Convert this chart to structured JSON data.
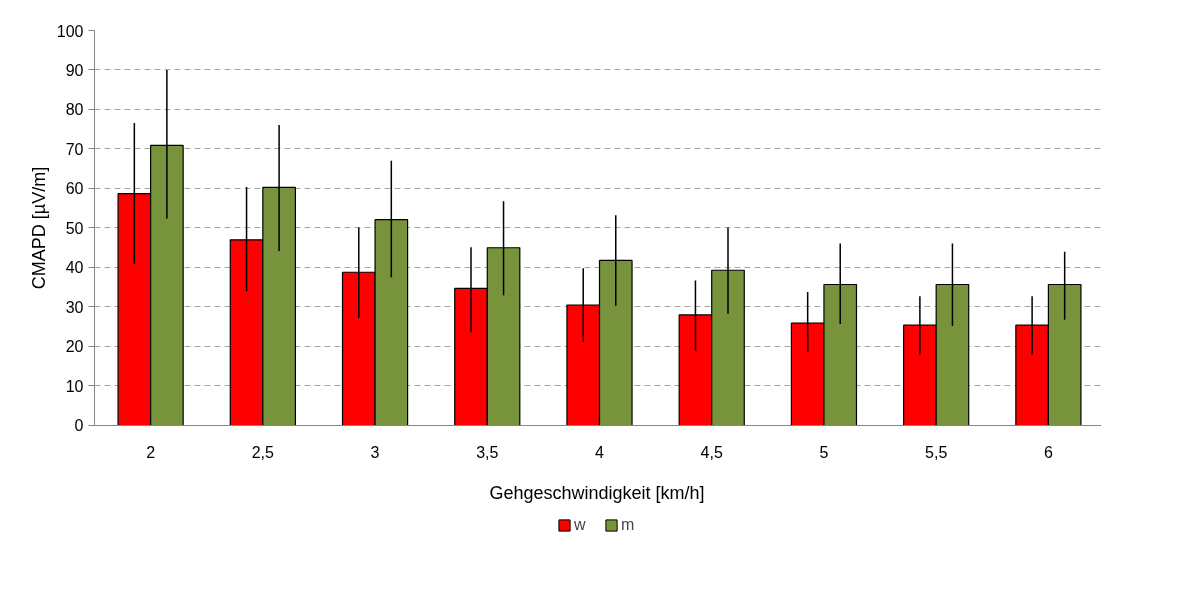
{
  "chart_data": {
    "type": "bar",
    "xlabel": "Gehgeschwindigkeit  [km/h]",
    "ylabel": "CMAPD [µV/m]",
    "categories": [
      "2",
      "2,5",
      "3",
      "3,5",
      "4",
      "4,5",
      "5",
      "5,5",
      "6"
    ],
    "series": [
      {
        "name": "w",
        "color": "#ff0000",
        "values": [
          58.7,
          47.0,
          38.8,
          34.7,
          30.5,
          28.0,
          25.9,
          25.4,
          25.4
        ],
        "errors": [
          [
            40.8,
            76.6
          ],
          [
            34.0,
            60.4
          ],
          [
            27.3,
            50.1
          ],
          [
            23.6,
            45.1
          ],
          [
            21.2,
            39.8
          ],
          [
            19.0,
            36.7
          ],
          [
            18.6,
            33.8
          ],
          [
            18.0,
            32.7
          ],
          [
            18.0,
            32.7
          ]
        ]
      },
      {
        "name": "m",
        "color": "#77933c",
        "values": [
          70.9,
          60.3,
          52.1,
          45.0,
          41.8,
          39.3,
          35.7,
          35.7,
          35.7
        ],
        "errors": [
          [
            52.4,
            90.0
          ],
          [
            44.2,
            76.1
          ],
          [
            37.5,
            67.0
          ],
          [
            33.0,
            56.8
          ],
          [
            30.3,
            53.2
          ],
          [
            28.3,
            50.1
          ],
          [
            25.7,
            46.1
          ],
          [
            25.2,
            46.1
          ],
          [
            26.8,
            44.0
          ]
        ]
      }
    ],
    "ylim": [
      0,
      100
    ],
    "yticks": [
      0,
      10,
      20,
      30,
      40,
      50,
      60,
      70,
      80,
      90,
      100
    ],
    "grid": "y",
    "legend": "bottom"
  }
}
